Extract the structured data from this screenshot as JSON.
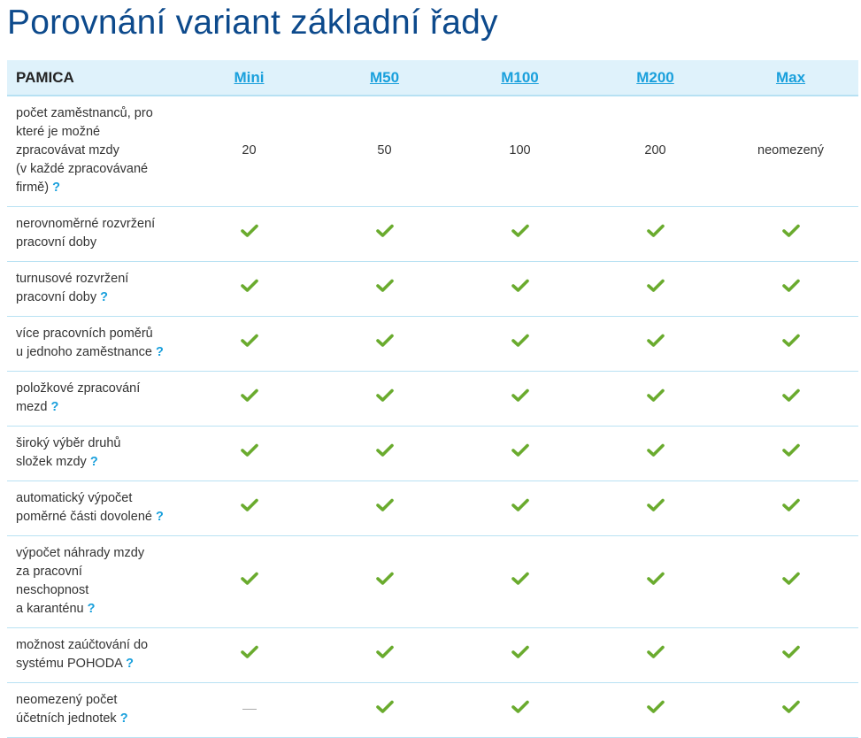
{
  "title": "Porovnání variant základní řady",
  "colors": {
    "title": "#0d4a8c",
    "header_bg": "#dff2fb",
    "link": "#1aa0dc",
    "check": "#6aab2e"
  },
  "header": {
    "brand": "PAMICA",
    "variants": [
      "Mini",
      "M50",
      "M100",
      "M200",
      "Max"
    ]
  },
  "rows": [
    {
      "label": [
        "počet zaměstnanců, pro",
        "které je možné",
        "zpracovávat mzdy",
        "(v každé zpracovávané",
        "firmě)"
      ],
      "help": "?",
      "values": [
        "20",
        "50",
        "100",
        "200",
        "neomezený"
      ]
    },
    {
      "label": [
        "nerovnoměrné rozvržení",
        "pracovní doby"
      ],
      "help": "",
      "values": [
        "check",
        "check",
        "check",
        "check",
        "check"
      ]
    },
    {
      "label": [
        "turnusové rozvržení",
        "pracovní doby"
      ],
      "help": "?",
      "values": [
        "check",
        "check",
        "check",
        "check",
        "check"
      ]
    },
    {
      "label": [
        "více pracovních poměrů",
        "u jednoho zaměstnance"
      ],
      "help": "?",
      "values": [
        "check",
        "check",
        "check",
        "check",
        "check"
      ]
    },
    {
      "label": [
        "položkové zpracování",
        "mezd"
      ],
      "help": "?",
      "values": [
        "check",
        "check",
        "check",
        "check",
        "check"
      ]
    },
    {
      "label": [
        "široký výběr druhů",
        "složek mzdy"
      ],
      "help": "?",
      "values": [
        "check",
        "check",
        "check",
        "check",
        "check"
      ]
    },
    {
      "label": [
        "automatický výpočet",
        "poměrné části dovolené"
      ],
      "help": "?",
      "values": [
        "check",
        "check",
        "check",
        "check",
        "check"
      ]
    },
    {
      "label": [
        "výpočet náhrady mzdy",
        "za pracovní",
        "neschopnost",
        "a karanténu"
      ],
      "help": "?",
      "values": [
        "check",
        "check",
        "check",
        "check",
        "check"
      ]
    },
    {
      "label": [
        "možnost zaúčtování do",
        "systému POHODA"
      ],
      "help": "?",
      "values": [
        "check",
        "check",
        "check",
        "check",
        "check"
      ]
    },
    {
      "label": [
        "neomezený počet",
        "účetních jednotek"
      ],
      "help": "?",
      "values": [
        "dash",
        "check",
        "check",
        "check",
        "check"
      ]
    }
  ]
}
